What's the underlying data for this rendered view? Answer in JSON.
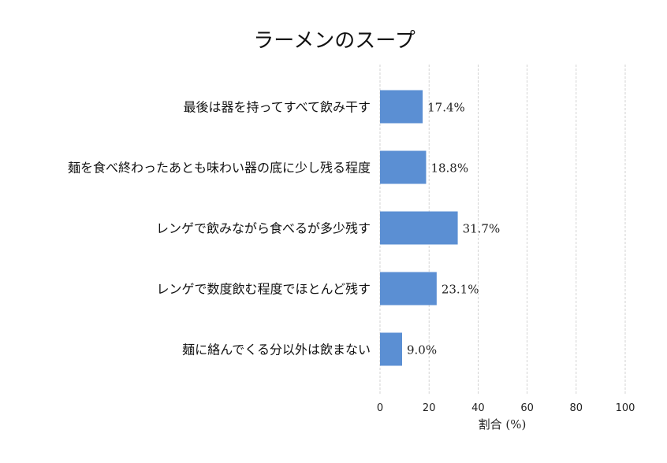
{
  "chart_data": {
    "type": "bar",
    "orientation": "horizontal",
    "title": "ラーメンのスープ",
    "xlabel": "割合 (%)",
    "ylabel": "",
    "xlim": [
      0,
      100
    ],
    "xticks": [
      0,
      20,
      40,
      60,
      80,
      100
    ],
    "grid": "vertical-dashed",
    "bar_color": "#5b8fd3",
    "categories": [
      "最後は器を持ってすべて飲み干す",
      "麺を食べ終わったあとも味わい器の底に少し残る程度",
      "レンゲで飲みながら食べるが多少残す",
      "レンゲで数度飲む程度でほとんど残す",
      "麺に絡んでくる分以外は飲まない"
    ],
    "values": [
      17.4,
      18.8,
      31.7,
      23.1,
      9.0
    ],
    "value_labels": [
      "17.4%",
      "18.8%",
      "31.7%",
      "23.1%",
      "9.0%"
    ]
  }
}
